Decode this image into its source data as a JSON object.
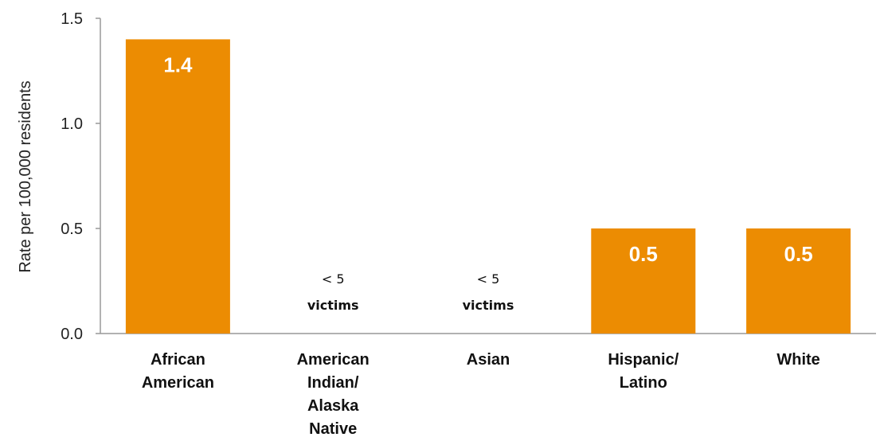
{
  "chart_data": {
    "type": "bar",
    "title": "",
    "xlabel": "",
    "ylabel": "Rate per 100,000 residents",
    "ylim": [
      0,
      1.5
    ],
    "yticks": [
      "0.0",
      "0.5",
      "1.0",
      "1.5"
    ],
    "ytick_values": [
      0,
      0.5,
      1.0,
      1.5
    ],
    "grid": false,
    "bar_color": "#EC8C02",
    "categories": [
      [
        "African",
        "American"
      ],
      [
        "American",
        "Indian/",
        "Alaska",
        "Native"
      ],
      [
        "Asian"
      ],
      [
        "Hispanic/",
        "Latino"
      ],
      [
        "White"
      ]
    ],
    "values": [
      1.4,
      null,
      null,
      0.5,
      0.5
    ],
    "data_labels": [
      "1.4",
      "",
      "",
      "0.5",
      "0.5"
    ],
    "suppressed_notes": [
      null,
      [
        "< 5",
        "victims"
      ],
      [
        "< 5",
        "victims"
      ],
      null,
      null
    ]
  }
}
